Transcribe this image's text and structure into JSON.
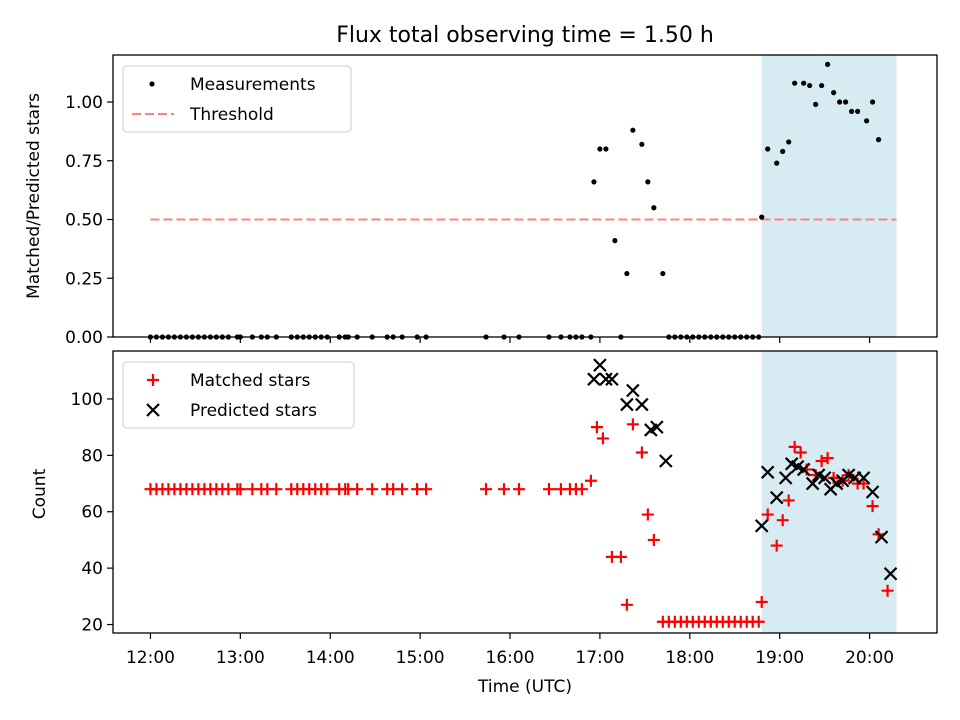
{
  "chart_data": [
    {
      "type": "scatter",
      "title": "Flux total observing time = 1.50 h",
      "xlabel": "",
      "ylabel": "Matched/Predicted stars",
      "ylim": [
        0,
        1.2
      ],
      "xlim": [
        "11:35",
        "20:45"
      ],
      "y_ticks": [
        "0.00",
        "0.25",
        "0.50",
        "0.75",
        "1.00"
      ],
      "highlight_span": {
        "from": "18:48",
        "to": "20:18",
        "color": "#add8e6"
      },
      "legend_position": "upper-left",
      "series": [
        {
          "name": "Measurements",
          "marker": "dot",
          "color": "#000000",
          "points": [
            [
              "12:00",
              0
            ],
            [
              "12:04",
              0
            ],
            [
              "12:08",
              0
            ],
            [
              "12:12",
              0
            ],
            [
              "12:16",
              0
            ],
            [
              "12:20",
              0
            ],
            [
              "12:24",
              0
            ],
            [
              "12:28",
              0
            ],
            [
              "12:32",
              0
            ],
            [
              "12:36",
              0
            ],
            [
              "12:40",
              0
            ],
            [
              "12:44",
              0
            ],
            [
              "12:48",
              0
            ],
            [
              "12:52",
              0
            ],
            [
              "12:58",
              0
            ],
            [
              "13:00",
              0
            ],
            [
              "13:08",
              0
            ],
            [
              "13:14",
              0
            ],
            [
              "13:18",
              0
            ],
            [
              "13:24",
              0
            ],
            [
              "13:34",
              0
            ],
            [
              "13:38",
              0
            ],
            [
              "13:42",
              0
            ],
            [
              "13:46",
              0
            ],
            [
              "13:50",
              0
            ],
            [
              "13:54",
              0
            ],
            [
              "13:58",
              0
            ],
            [
              "14:06",
              0
            ],
            [
              "14:10",
              0
            ],
            [
              "14:12",
              0
            ],
            [
              "14:18",
              0
            ],
            [
              "14:28",
              0
            ],
            [
              "14:38",
              0
            ],
            [
              "14:42",
              0
            ],
            [
              "14:48",
              0
            ],
            [
              "14:58",
              0
            ],
            [
              "15:04",
              0
            ],
            [
              "15:44",
              0
            ],
            [
              "15:56",
              0
            ],
            [
              "16:06",
              0
            ],
            [
              "16:26",
              0
            ],
            [
              "16:34",
              0
            ],
            [
              "16:40",
              0
            ],
            [
              "16:44",
              0
            ],
            [
              "16:48",
              0
            ],
            [
              "16:54",
              0
            ],
            [
              "16:56",
              0.66
            ],
            [
              "17:00",
              0.8
            ],
            [
              "17:04",
              0.8
            ],
            [
              "17:10",
              0.41
            ],
            [
              "17:14",
              0
            ],
            [
              "17:18",
              0.27
            ],
            [
              "17:22",
              0.88
            ],
            [
              "17:28",
              0.82
            ],
            [
              "17:32",
              0.66
            ],
            [
              "17:36",
              0.55
            ],
            [
              "17:42",
              0.27
            ],
            [
              "17:46",
              0
            ],
            [
              "17:50",
              0
            ],
            [
              "17:54",
              0
            ],
            [
              "17:58",
              0
            ],
            [
              "18:02",
              0
            ],
            [
              "18:06",
              0
            ],
            [
              "18:10",
              0
            ],
            [
              "18:14",
              0
            ],
            [
              "18:18",
              0
            ],
            [
              "18:22",
              0
            ],
            [
              "18:26",
              0
            ],
            [
              "18:30",
              0
            ],
            [
              "18:34",
              0
            ],
            [
              "18:38",
              0
            ],
            [
              "18:42",
              0
            ],
            [
              "18:46",
              0
            ],
            [
              "18:48",
              0.51
            ],
            [
              "18:52",
              0.8
            ],
            [
              "18:58",
              0.74
            ],
            [
              "19:02",
              0.79
            ],
            [
              "19:06",
              0.83
            ],
            [
              "19:10",
              1.08
            ],
            [
              "19:16",
              1.08
            ],
            [
              "19:20",
              1.07
            ],
            [
              "19:24",
              0.99
            ],
            [
              "19:28",
              1.07
            ],
            [
              "19:32",
              1.16
            ],
            [
              "19:36",
              1.04
            ],
            [
              "19:40",
              1.0
            ],
            [
              "19:44",
              1.0
            ],
            [
              "19:48",
              0.96
            ],
            [
              "19:52",
              0.96
            ],
            [
              "19:58",
              0.92
            ],
            [
              "20:02",
              1.0
            ],
            [
              "20:06",
              0.84
            ]
          ]
        },
        {
          "name": "Threshold",
          "marker": "dashed-line",
          "color": "#ff8080",
          "points": [
            [
              "12:00",
              0.5
            ],
            [
              "20:18",
              0.5
            ]
          ]
        }
      ]
    },
    {
      "type": "scatter",
      "title": "",
      "xlabel": "Time (UTC)",
      "ylabel": "Count",
      "ylim": [
        17,
        117
      ],
      "xlim": [
        "11:35",
        "20:45"
      ],
      "x_ticks": [
        "12:00",
        "13:00",
        "14:00",
        "15:00",
        "16:00",
        "17:00",
        "18:00",
        "19:00",
        "20:00"
      ],
      "y_ticks": [
        "20",
        "40",
        "60",
        "80",
        "100"
      ],
      "highlight_span": {
        "from": "18:48",
        "to": "20:18",
        "color": "#add8e6"
      },
      "legend_position": "upper-left",
      "series": [
        {
          "name": "Matched stars",
          "marker": "plus",
          "color": "#ff0000",
          "points": [
            [
              "12:00",
              68
            ],
            [
              "12:04",
              68
            ],
            [
              "12:08",
              68
            ],
            [
              "12:12",
              68
            ],
            [
              "12:16",
              68
            ],
            [
              "12:20",
              68
            ],
            [
              "12:24",
              68
            ],
            [
              "12:28",
              68
            ],
            [
              "12:32",
              68
            ],
            [
              "12:36",
              68
            ],
            [
              "12:40",
              68
            ],
            [
              "12:44",
              68
            ],
            [
              "12:48",
              68
            ],
            [
              "12:52",
              68
            ],
            [
              "12:58",
              68
            ],
            [
              "13:00",
              68
            ],
            [
              "13:08",
              68
            ],
            [
              "13:14",
              68
            ],
            [
              "13:18",
              68
            ],
            [
              "13:24",
              68
            ],
            [
              "13:34",
              68
            ],
            [
              "13:38",
              68
            ],
            [
              "13:42",
              68
            ],
            [
              "13:46",
              68
            ],
            [
              "13:50",
              68
            ],
            [
              "13:54",
              68
            ],
            [
              "13:58",
              68
            ],
            [
              "14:06",
              68
            ],
            [
              "14:10",
              68
            ],
            [
              "14:12",
              68
            ],
            [
              "14:18",
              68
            ],
            [
              "14:28",
              68
            ],
            [
              "14:38",
              68
            ],
            [
              "14:42",
              68
            ],
            [
              "14:48",
              68
            ],
            [
              "14:58",
              68
            ],
            [
              "15:04",
              68
            ],
            [
              "15:44",
              68
            ],
            [
              "15:56",
              68
            ],
            [
              "16:06",
              68
            ],
            [
              "16:26",
              68
            ],
            [
              "16:34",
              68
            ],
            [
              "16:40",
              68
            ],
            [
              "16:44",
              68
            ],
            [
              "16:48",
              68
            ],
            [
              "16:54",
              71
            ],
            [
              "16:58",
              90
            ],
            [
              "17:02",
              86
            ],
            [
              "17:08",
              44
            ],
            [
              "17:14",
              44
            ],
            [
              "17:18",
              27
            ],
            [
              "17:22",
              91
            ],
            [
              "17:28",
              81
            ],
            [
              "17:32",
              59
            ],
            [
              "17:36",
              50
            ],
            [
              "17:42",
              21
            ],
            [
              "17:46",
              21
            ],
            [
              "17:50",
              21
            ],
            [
              "17:54",
              21
            ],
            [
              "17:58",
              21
            ],
            [
              "18:02",
              21
            ],
            [
              "18:06",
              21
            ],
            [
              "18:10",
              21
            ],
            [
              "18:14",
              21
            ],
            [
              "18:18",
              21
            ],
            [
              "18:22",
              21
            ],
            [
              "18:26",
              21
            ],
            [
              "18:30",
              21
            ],
            [
              "18:34",
              21
            ],
            [
              "18:38",
              21
            ],
            [
              "18:42",
              21
            ],
            [
              "18:46",
              21
            ],
            [
              "18:48",
              28
            ],
            [
              "18:52",
              59
            ],
            [
              "18:58",
              48
            ],
            [
              "19:02",
              57
            ],
            [
              "19:06",
              64
            ],
            [
              "19:10",
              83
            ],
            [
              "19:14",
              81
            ],
            [
              "19:18",
              75
            ],
            [
              "19:24",
              73
            ],
            [
              "19:28",
              78
            ],
            [
              "19:32",
              79
            ],
            [
              "19:36",
              72
            ],
            [
              "19:42",
              71
            ],
            [
              "19:46",
              73
            ],
            [
              "19:52",
              70
            ],
            [
              "19:56",
              70
            ],
            [
              "20:02",
              62
            ],
            [
              "20:06",
              52
            ],
            [
              "20:12",
              32
            ]
          ]
        },
        {
          "name": "Predicted stars",
          "marker": "x",
          "color": "#000000",
          "points": [
            [
              "16:56",
              107
            ],
            [
              "17:00",
              112
            ],
            [
              "17:04",
              107
            ],
            [
              "17:08",
              107
            ],
            [
              "17:18",
              98
            ],
            [
              "17:22",
              103
            ],
            [
              "17:28",
              98
            ],
            [
              "17:34",
              89
            ],
            [
              "17:38",
              90
            ],
            [
              "17:44",
              78
            ],
            [
              "18:48",
              55
            ],
            [
              "18:52",
              74
            ],
            [
              "18:58",
              65
            ],
            [
              "19:04",
              72
            ],
            [
              "19:08",
              77
            ],
            [
              "19:12",
              76
            ],
            [
              "19:16",
              75
            ],
            [
              "19:22",
              70
            ],
            [
              "19:26",
              73
            ],
            [
              "19:30",
              72
            ],
            [
              "19:34",
              68
            ],
            [
              "19:38",
              70
            ],
            [
              "19:42",
              71
            ],
            [
              "19:46",
              73
            ],
            [
              "19:50",
              72
            ],
            [
              "19:56",
              72
            ],
            [
              "20:02",
              67
            ],
            [
              "20:08",
              51
            ],
            [
              "20:14",
              38
            ]
          ]
        }
      ]
    }
  ]
}
